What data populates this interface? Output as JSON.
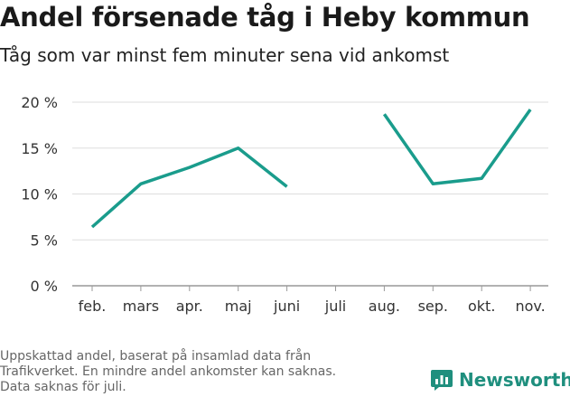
{
  "header": {
    "title": "Andel försenade tåg i Heby kommun",
    "subtitle": "Tåg som var minst fem minuter sena vid ankomst"
  },
  "chart_data": {
    "type": "line",
    "categories": [
      "feb.",
      "mars",
      "apr.",
      "maj",
      "juni",
      "juli",
      "aug.",
      "sep.",
      "okt.",
      "nov."
    ],
    "series": [
      {
        "values": [
          6.4,
          11.1,
          12.9,
          15.0,
          10.8,
          null,
          18.7,
          11.1,
          11.7,
          19.2
        ]
      }
    ],
    "yticks": [
      0,
      5,
      10,
      15,
      20
    ],
    "ytick_labels": [
      "0 %",
      "5 %",
      "10 %",
      "15 %",
      "20 %"
    ],
    "ylim": [
      0,
      20
    ],
    "grid": true,
    "line_color": "#1a9c8c"
  },
  "footnote": {
    "lines": [
      "Uppskattad andel, baserat på insamlad data från",
      "Trafikverket. En mindre andel ankomster kan saknas.",
      "Data saknas för juli."
    ]
  },
  "brand": {
    "name": "Newsworthy",
    "icon": "newsworthy-logo-icon",
    "color": "#1f8f7e"
  }
}
